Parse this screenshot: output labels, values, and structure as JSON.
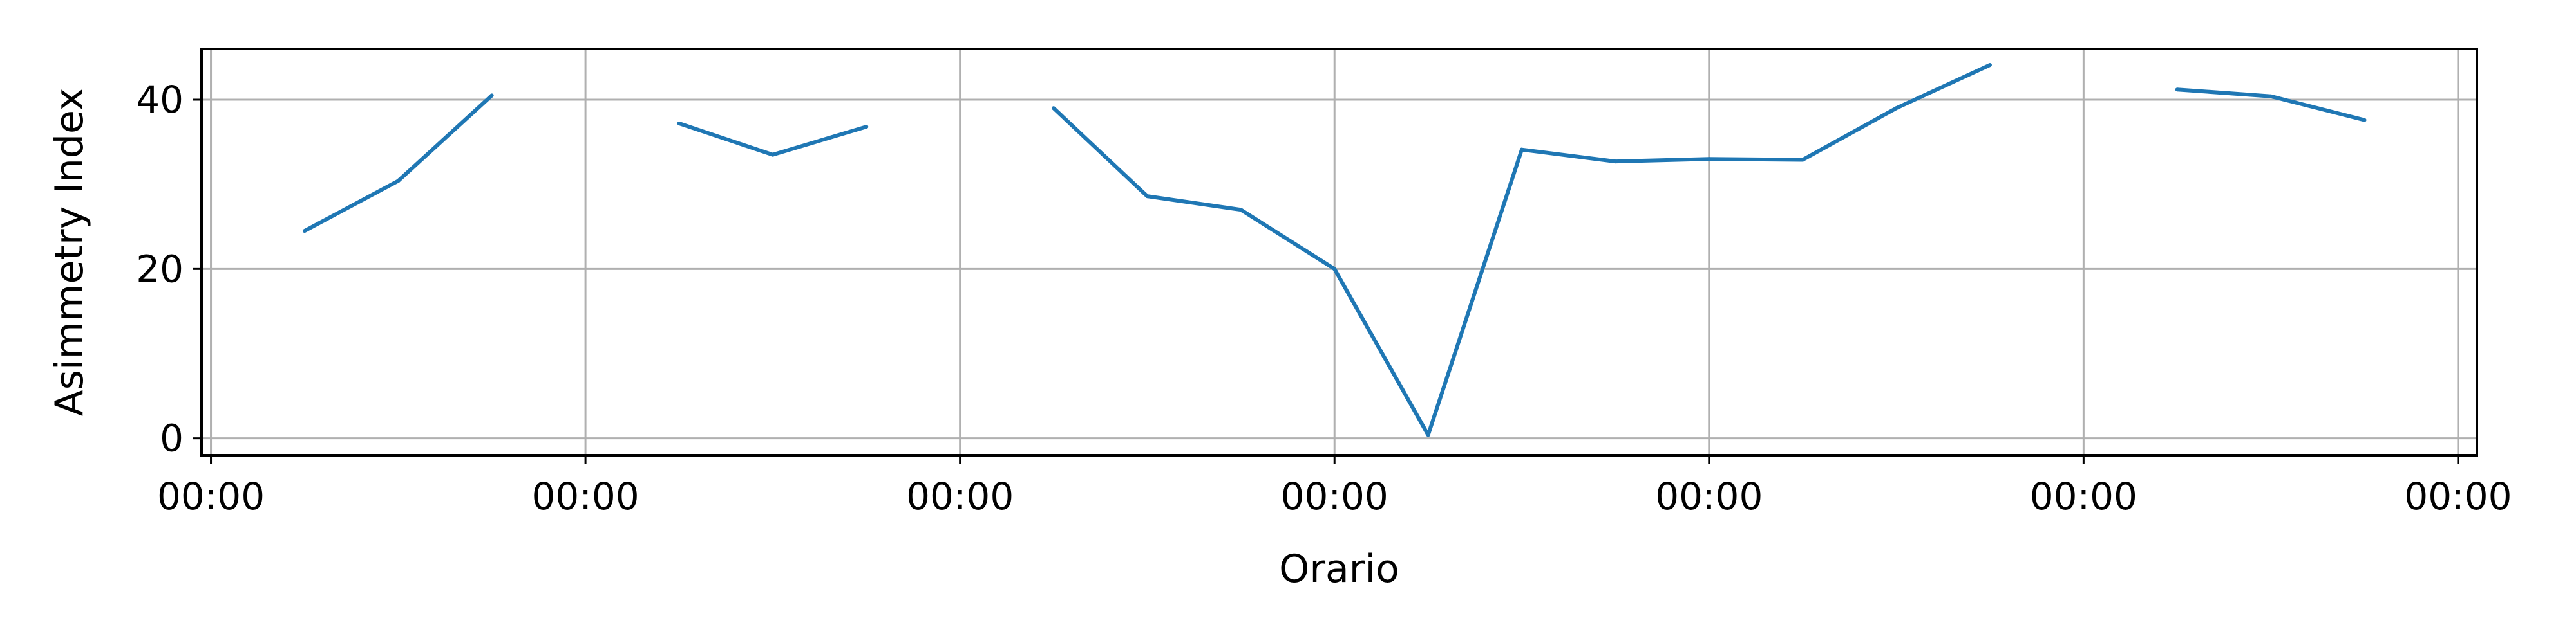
{
  "chart_data": {
    "type": "line",
    "xlabel": "Orario",
    "ylabel": "Asimmetry Index",
    "x_tick_labels": [
      "00:00",
      "00:00",
      "00:00",
      "00:00",
      "00:00",
      "00:00",
      "00:00"
    ],
    "y_ticks": [
      0,
      20,
      40
    ],
    "ylim": [
      -2,
      46
    ],
    "xlim": [
      -0.1,
      24.2
    ],
    "grid": true,
    "line_color": "#1f77b4",
    "series": [
      {
        "x": [
          1,
          2,
          3,
          5,
          6,
          7,
          9,
          10,
          11,
          12,
          13,
          14,
          15,
          16,
          17,
          18,
          19,
          21,
          22,
          23
        ],
        "values": [
          24.5,
          30.4,
          40.5,
          37.2,
          33.5,
          36.8,
          39.0,
          28.6,
          27.0,
          20.0,
          0.4,
          34.1,
          32.7,
          33.0,
          32.9,
          39.0,
          44.1,
          41.2,
          40.4,
          37.6
        ],
        "segments": [
          [
            0,
            2
          ],
          [
            3,
            5
          ],
          [
            6,
            16
          ],
          [
            17,
            19
          ]
        ]
      }
    ]
  }
}
